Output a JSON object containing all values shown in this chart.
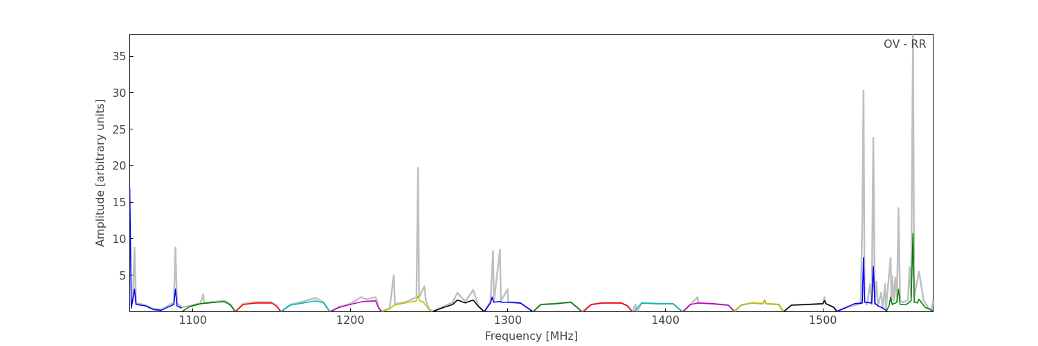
{
  "chart_data": {
    "type": "line",
    "xlabel": "Frequency [MHz]",
    "ylabel": "Amplitude [arbitrary units]",
    "annotations": [
      "OV - RR"
    ],
    "xlim": [
      1060,
      1570
    ],
    "ylim": [
      0,
      38
    ],
    "xticks": [
      1100,
      1200,
      1300,
      1400,
      1500
    ],
    "yticks": [
      5,
      10,
      15,
      20,
      25,
      30,
      35
    ],
    "grid": false,
    "marker": "none",
    "line_style": "solid",
    "series": [
      {
        "color": "#bfbfbf",
        "x": [
          1061,
          1062,
          1063,
          1064,
          1070,
          1075,
          1080,
          1085,
          1088,
          1089,
          1090,
          1093,
          1098,
          1105,
          1106.6,
          1107.2,
          1115,
          1120,
          1124,
          1127,
          1132,
          1140,
          1150,
          1153,
          1156,
          1162,
          1170,
          1178,
          1183,
          1187,
          1193,
          1200,
          1207,
          1210,
          1216,
          1217,
          1218,
          1220,
          1225,
          1227.6,
          1228.3,
          1235,
          1242,
          1243,
          1243.7,
          1247,
          1248,
          1250,
          1252,
          1258,
          1265,
          1268,
          1273,
          1278,
          1281,
          1285,
          1289,
          1290.6,
          1291.2,
          1295,
          1295.6,
          1299.8,
          1300.4,
          1308,
          1312,
          1316,
          1321,
          1330,
          1340,
          1344,
          1347,
          1353,
          1360,
          1372,
          1376,
          1379,
          1381,
          1382,
          1385,
          1395,
          1405,
          1408,
          1411,
          1416,
          1420.4,
          1421,
          1430,
          1440,
          1444,
          1448,
          1455,
          1462,
          1463,
          1464,
          1472,
          1475,
          1480,
          1490,
          1500,
          1501,
          1502,
          1507,
          1509,
          1513,
          1520,
          1524,
          1525,
          1525.8,
          1526.5,
          1528,
          1530,
          1531,
          1532,
          1533,
          1534,
          1535,
          1537,
          1538,
          1539.5,
          1540,
          1543,
          1543.5,
          1544,
          1545,
          1546,
          1547,
          1548,
          1549,
          1551,
          1554,
          1555,
          1556,
          1557.2,
          1558,
          1561,
          1564,
          1567,
          1569,
          1570
        ],
        "values": [
          1.0,
          1.5,
          8.8,
          1.2,
          0.9,
          0.4,
          0.3,
          0.9,
          1.3,
          8.8,
          1.2,
          0.6,
          0.8,
          1.2,
          2.4,
          1.2,
          1.4,
          1.5,
          1.0,
          0,
          1.1,
          1.3,
          1.3,
          0.9,
          0,
          1.0,
          1.4,
          1.9,
          1.3,
          0,
          0.7,
          1.1,
          2.0,
          1.7,
          2.0,
          1.5,
          0.6,
          0,
          0.5,
          5.0,
          1.1,
          1.3,
          2.0,
          19.7,
          2.0,
          3.5,
          1.5,
          0.4,
          0,
          0.6,
          1.3,
          2.6,
          1.4,
          3.0,
          1.0,
          0,
          1.4,
          8.3,
          1.4,
          8.5,
          1.4,
          3.1,
          1.3,
          1.2,
          0.6,
          0,
          1.0,
          1.1,
          1.3,
          0.6,
          0,
          1.0,
          1.2,
          1.2,
          0.8,
          0,
          1.0,
          0,
          1.2,
          1.1,
          1.1,
          0.5,
          0,
          1.0,
          2.0,
          1.2,
          1.1,
          0.9,
          0,
          0.9,
          1.2,
          1.1,
          1.6,
          1.1,
          1.0,
          0,
          0.9,
          1.0,
          1.1,
          2.0,
          1.1,
          0.6,
          0,
          0.5,
          0.9,
          1.1,
          12.3,
          30.3,
          1.5,
          1.0,
          3.8,
          1.0,
          23.8,
          1.0,
          4.1,
          0.8,
          2.6,
          0.5,
          3.8,
          0.3,
          7.4,
          1.5,
          4.9,
          1.5,
          4.7,
          1.5,
          14.2,
          1.5,
          1.3,
          1.6,
          6.1,
          2.0,
          38,
          2.0,
          5.5,
          1.5,
          0.5,
          0.3,
          1.5
        ]
      },
      {
        "color": "#0000ff",
        "x": [
          1060,
          1061,
          1063,
          1064,
          1070,
          1075,
          1080,
          1085,
          1088,
          1089,
          1090,
          1093
        ],
        "values": [
          17,
          0.5,
          3.1,
          1.0,
          0.8,
          0.3,
          0.2,
          0.7,
          1.0,
          3.1,
          0.8,
          0.5
        ]
      },
      {
        "color": "#008000",
        "x": [
          1093,
          1098,
          1105,
          1115,
          1120,
          1124,
          1127
        ],
        "values": [
          0,
          0.7,
          1.1,
          1.3,
          1.4,
          0.9,
          0
        ]
      },
      {
        "color": "#ff0000",
        "x": [
          1127,
          1132,
          1140,
          1150,
          1153,
          1156
        ],
        "values": [
          0,
          1.0,
          1.2,
          1.2,
          0.8,
          0
        ]
      },
      {
        "color": "#00bfbf",
        "x": [
          1156,
          1162,
          1170,
          1178,
          1183,
          1187
        ],
        "values": [
          0,
          0.9,
          1.2,
          1.5,
          1.2,
          0
        ]
      },
      {
        "color": "#bf00bf",
        "x": [
          1187,
          1193,
          1200,
          1208,
          1216,
          1218,
          1220
        ],
        "values": [
          0,
          0.6,
          1.0,
          1.4,
          1.5,
          0.5,
          0
        ]
      },
      {
        "color": "#bfbf00",
        "x": [
          1220,
          1225,
          1228,
          1235,
          1242,
          1243,
          1244,
          1246,
          1250,
          1252
        ],
        "values": [
          0,
          0.4,
          0.9,
          1.2,
          1.5,
          2.2,
          1.5,
          1.4,
          0.3,
          0
        ]
      },
      {
        "color": "#000000",
        "x": [
          1252,
          1258,
          1265,
          1268,
          1273,
          1278,
          1281,
          1285
        ],
        "values": [
          0,
          0.5,
          1.0,
          1.6,
          1.2,
          1.6,
          0.8,
          0
        ]
      },
      {
        "color": "#0000ff",
        "x": [
          1285,
          1289,
          1290,
          1291,
          1295,
          1296,
          1300,
          1308,
          1312,
          1316
        ],
        "values": [
          0,
          1.2,
          2.0,
          1.3,
          1.4,
          1.3,
          1.3,
          1.2,
          0.6,
          0
        ]
      },
      {
        "color": "#008000",
        "x": [
          1316,
          1321,
          1330,
          1340,
          1344,
          1347
        ],
        "values": [
          0,
          1.0,
          1.1,
          1.3,
          0.6,
          0
        ]
      },
      {
        "color": "#ff0000",
        "x": [
          1348,
          1353,
          1360,
          1372,
          1376,
          1379
        ],
        "values": [
          0,
          1.0,
          1.2,
          1.2,
          0.8,
          0
        ]
      },
      {
        "color": "#00bfbf",
        "x": [
          1380,
          1385,
          1395,
          1405,
          1408,
          1411
        ],
        "values": [
          0,
          1.2,
          1.1,
          1.1,
          0.5,
          0
        ]
      },
      {
        "color": "#bf00bf",
        "x": [
          1411,
          1416,
          1421,
          1430,
          1440,
          1444
        ],
        "values": [
          0,
          1.0,
          1.2,
          1.1,
          0.9,
          0
        ]
      },
      {
        "color": "#bfbf00",
        "x": [
          1443,
          1448,
          1455,
          1462,
          1463,
          1464,
          1472,
          1475
        ],
        "values": [
          0,
          0.9,
          1.2,
          1.1,
          1.6,
          1.1,
          1.0,
          0
        ]
      },
      {
        "color": "#000000",
        "x": [
          1475,
          1480,
          1490,
          1500,
          1501,
          1502,
          1507,
          1509
        ],
        "values": [
          0,
          0.9,
          1.0,
          1.1,
          1.5,
          1.1,
          0.6,
          0
        ]
      },
      {
        "color": "#0000ff",
        "x": [
          1508,
          1513,
          1520,
          1525,
          1525.8,
          1526.5,
          1531,
          1532,
          1533,
          1535,
          1538,
          1540,
          1541
        ],
        "values": [
          0,
          0.4,
          1.1,
          1.2,
          7.4,
          1.3,
          1.2,
          6.2,
          1.2,
          0.8,
          0.5,
          0.2,
          0
        ]
      },
      {
        "color": "#008000",
        "x": [
          1540,
          1542,
          1543,
          1544,
          1547,
          1548,
          1549,
          1553,
          1556,
          1557.2,
          1558,
          1560,
          1561,
          1565,
          1568,
          1570
        ],
        "values": [
          0,
          0.8,
          2.0,
          1.0,
          1.3,
          3.1,
          1.0,
          1.0,
          1.5,
          10.7,
          1.3,
          1.2,
          1.7,
          0.6,
          0.3,
          0.1
        ]
      }
    ]
  }
}
